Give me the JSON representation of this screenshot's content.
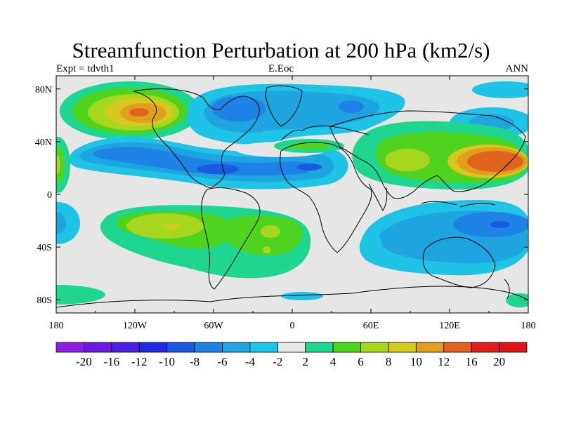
{
  "title": "Streamfunction Perturbation at 200 hPa (km2/s)",
  "subtitle_left": "Expt = tdvth1",
  "subtitle_center": "E.Eoc",
  "subtitle_right": "ANN",
  "map": {
    "projection": "cylindrical-equidistant",
    "lon_range": [
      -180,
      180
    ],
    "lat_range": [
      -90,
      90
    ],
    "x_ticks": [
      {
        "value": -180,
        "label": "180"
      },
      {
        "value": -120,
        "label": "120W"
      },
      {
        "value": -60,
        "label": "60W"
      },
      {
        "value": 0,
        "label": "0"
      },
      {
        "value": 60,
        "label": "60E"
      },
      {
        "value": 120,
        "label": "120E"
      },
      {
        "value": 180,
        "label": "180"
      }
    ],
    "y_ticks": [
      {
        "value": 80,
        "label": "80N"
      },
      {
        "value": 40,
        "label": "40N"
      },
      {
        "value": 0,
        "label": "0"
      },
      {
        "value": -40,
        "label": "40S"
      },
      {
        "value": -80,
        "label": "80S"
      }
    ],
    "background_color": "#e6e6e6",
    "coastline_color": "#000000",
    "features": [
      {
        "name": "north-pacific-high",
        "lon": -135,
        "lat": 62,
        "value": 12,
        "sign": "positive"
      },
      {
        "name": "south-pacific-high",
        "lon": -90,
        "lat": -25,
        "value": 10,
        "sign": "positive"
      },
      {
        "name": "south-atlantic-high",
        "lon": -20,
        "lat": -25,
        "value": 8,
        "sign": "positive"
      },
      {
        "name": "west-pacific-high",
        "lon": 150,
        "lat": 25,
        "value": 16,
        "sign": "positive"
      },
      {
        "name": "east-pacific-low",
        "lon": -100,
        "lat": 25,
        "value": -10,
        "sign": "negative"
      },
      {
        "name": "north-atlantic-low",
        "lon": -20,
        "lat": 55,
        "value": -8,
        "sign": "negative"
      },
      {
        "name": "south-indian-low",
        "lon": 155,
        "lat": -22,
        "value": -12,
        "sign": "negative"
      }
    ]
  },
  "colorbar": {
    "labels": [
      "-20",
      "-16",
      "-12",
      "-10",
      "-8",
      "-6",
      "-4",
      "-2",
      "2",
      "4",
      "6",
      "8",
      "10",
      "12",
      "16",
      "20"
    ],
    "colors": [
      "#8c1ee0",
      "#6a1ae0",
      "#4a20e0",
      "#1e28e0",
      "#1a5ae0",
      "#1e82e6",
      "#1ea5e0",
      "#1ec3e6",
      "#e6e6e6",
      "#1ed690",
      "#50d31e",
      "#a6d61e",
      "#d6c81e",
      "#e0a01e",
      "#e0641e",
      "#e01e1e",
      "#e01414"
    ]
  }
}
